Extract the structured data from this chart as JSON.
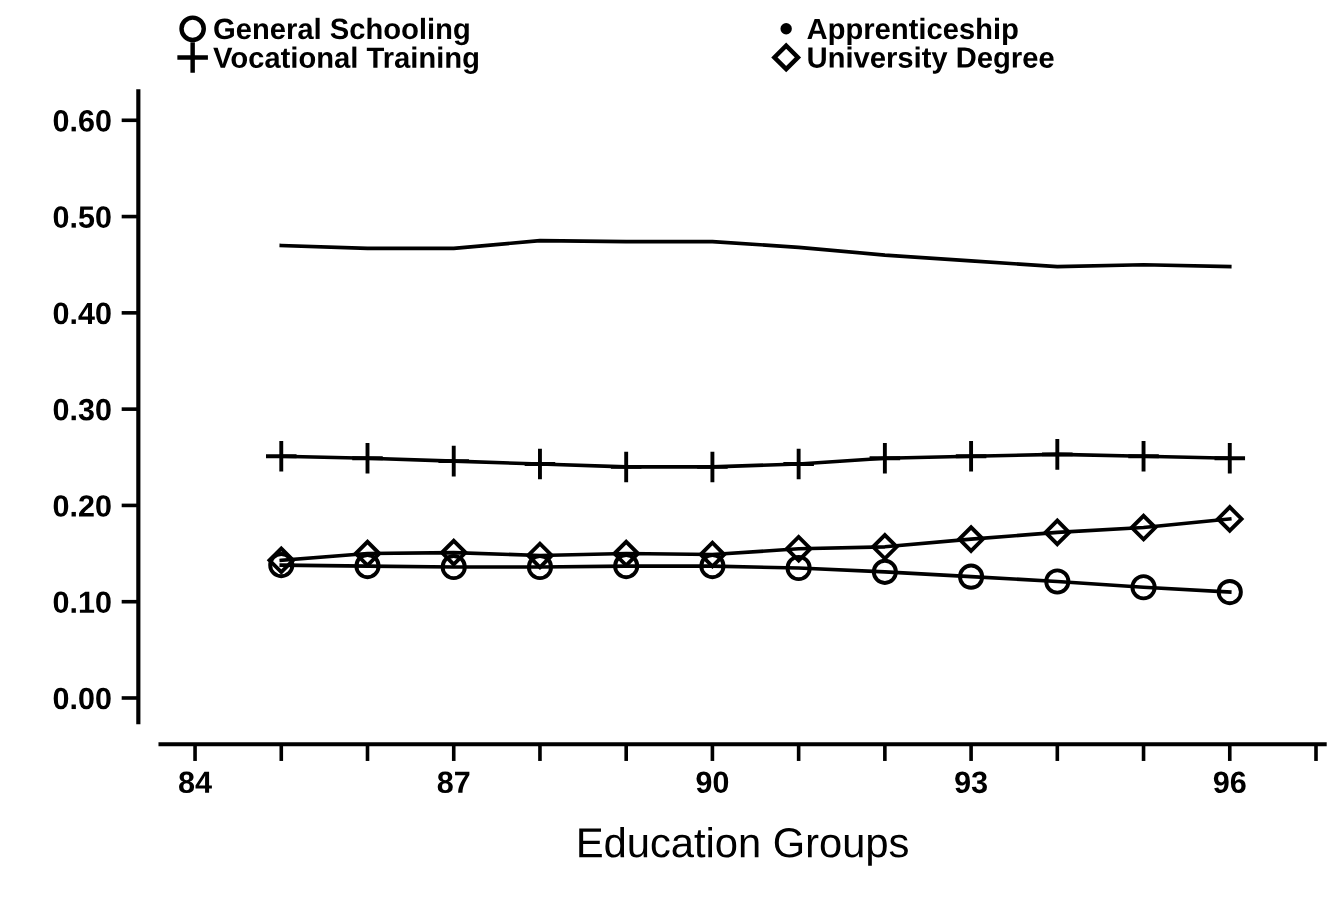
{
  "chart_data": {
    "type": "line",
    "xlabel": "Education Groups",
    "x": [
      85,
      86,
      87,
      88,
      89,
      90,
      91,
      92,
      93,
      94,
      95,
      96
    ],
    "series": [
      {
        "name": "General Schooling",
        "color": "#000000",
        "marker": "circle",
        "values": [
          0.138,
          0.137,
          0.136,
          0.136,
          0.137,
          0.137,
          0.135,
          0.131,
          0.126,
          0.121,
          0.115,
          0.11
        ]
      },
      {
        "name": "Apprenticeship",
        "color": "#000000",
        "marker": "none",
        "values": [
          0.47,
          0.467,
          0.467,
          0.475,
          0.474,
          0.474,
          0.468,
          0.46,
          0.454,
          0.448,
          0.45,
          0.448
        ]
      },
      {
        "name": "Vocational Training",
        "color": "#000000",
        "marker": "cross",
        "values": [
          0.251,
          0.249,
          0.246,
          0.243,
          0.24,
          0.24,
          0.243,
          0.249,
          0.251,
          0.253,
          0.251,
          0.249
        ]
      },
      {
        "name": "University Degree",
        "color": "#000000",
        "marker": "diamond",
        "values": [
          0.143,
          0.15,
          0.151,
          0.148,
          0.15,
          0.149,
          0.155,
          0.157,
          0.165,
          0.172,
          0.177,
          0.186
        ]
      }
    ],
    "xlim": [
      83.6,
      97.1
    ],
    "xticks": [
      84,
      {
        "value": 85,
        "label": null
      },
      {
        "value": 86,
        "label": null
      },
      87,
      {
        "value": 88,
        "label": null
      },
      {
        "value": 89,
        "label": null
      },
      90,
      {
        "value": 91,
        "label": null
      },
      {
        "value": 92,
        "label": null
      },
      93,
      {
        "value": 94,
        "label": null
      },
      {
        "value": 95,
        "label": null
      },
      96,
      {
        "value": 97,
        "label": null
      }
    ],
    "ylim": [
      -0.025,
      0.63
    ],
    "yticks": [
      {
        "value": 0,
        "label": "0.00"
      },
      {
        "value": 0.1,
        "label": "0.10"
      },
      {
        "value": 0.2,
        "label": "0.20"
      },
      {
        "value": 0.3,
        "label": "0.30"
      },
      {
        "value": 0.4,
        "label": "0.40"
      },
      {
        "value": 0.5,
        "label": "0.50"
      },
      {
        "value": 0.6,
        "label": "0.60"
      }
    ],
    "grid": false,
    "legend": "top",
    "line_style": "solid"
  }
}
